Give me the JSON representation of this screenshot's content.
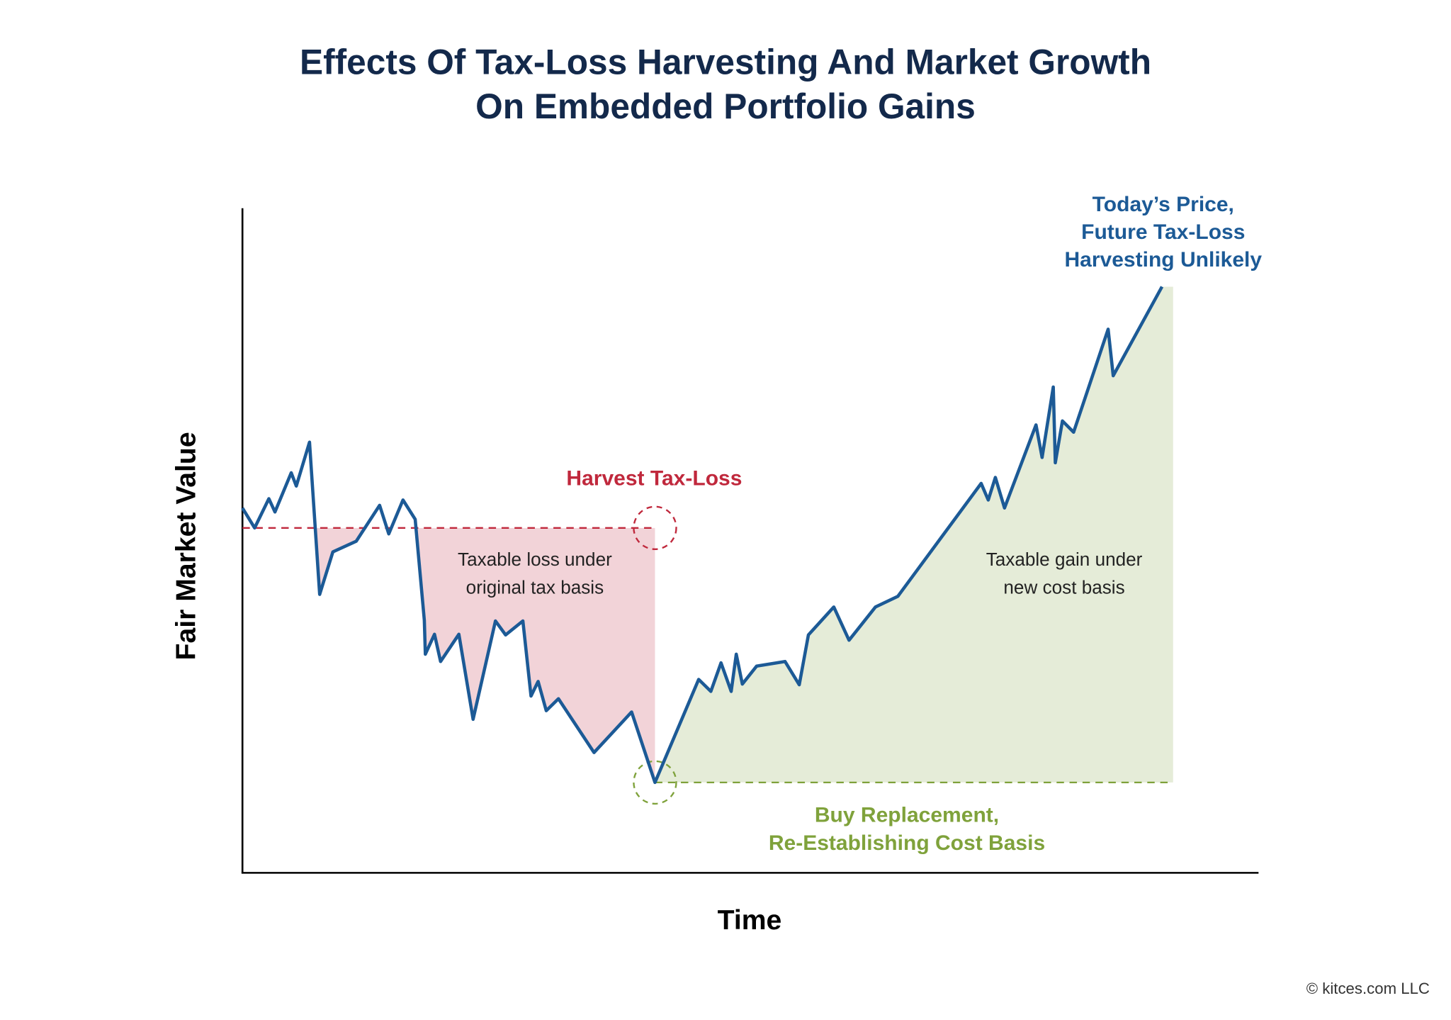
{
  "chart_data": {
    "type": "line",
    "title": [
      "Effects Of Tax-Loss Harvesting And Market Growth",
      "On Embedded Portfolio Gains"
    ],
    "x_label": "Time",
    "y_label": "Fair Market Value",
    "xlim": [
      0,
      100
    ],
    "ylim": [
      0,
      100
    ],
    "original_basis": 51.9,
    "series": [
      {
        "name": "Price",
        "color": "#1c5a96",
        "x": [
          0,
          1.2,
          2.6,
          3.2,
          4.8,
          5.3,
          6.6,
          7.6,
          8.9,
          11.2,
          13.5,
          14.4,
          15.8,
          17.0,
          17.9,
          18.0,
          18.9,
          19.5,
          21.3,
          22.7,
          24.9,
          25.9,
          27.6,
          28.4,
          29.1,
          29.9,
          31.1,
          34.6,
          38.3,
          40.6,
          44.9,
          46.1,
          47.1,
          48.1,
          48.6,
          49.2,
          50.6,
          53.4,
          54.8,
          55.7,
          58.2,
          59.7,
          62.3,
          64.5,
          72.7,
          73.4,
          74.1,
          75.0,
          78.1,
          78.7,
          79.8,
          80.0,
          80.7,
          81.8,
          85.2,
          85.7,
          90.5
        ],
        "values": [
          54.9,
          51.9,
          56.3,
          54.3,
          60.2,
          58.2,
          64.8,
          41.9,
          48.3,
          49.9,
          55.3,
          51.0,
          56.1,
          53.2,
          38.0,
          32.9,
          35.9,
          31.8,
          35.9,
          23.1,
          37.9,
          35.8,
          37.9,
          26.6,
          28.8,
          24.4,
          26.2,
          18.1,
          24.2,
          13.6,
          29.1,
          27.3,
          31.6,
          27.3,
          32.9,
          28.4,
          31.1,
          31.8,
          28.3,
          35.8,
          40.0,
          35.0,
          40.0,
          41.6,
          58.6,
          56.1,
          59.5,
          54.9,
          67.4,
          62.5,
          73.1,
          61.7,
          68.0,
          66.3,
          81.8,
          74.8,
          88.2
        ]
      }
    ],
    "loss_color": "#c0283c",
    "gain_color": "#7fa23b",
    "annotations": {
      "harvest": [
        "Harvest Tax-Loss"
      ],
      "loss_area": [
        "Taxable loss under",
        "original tax basis"
      ],
      "gain_area": [
        "Taxable gain under",
        "new cost basis"
      ],
      "replacement": [
        "Buy Replacement,",
        "Re-Establishing Cost Basis"
      ],
      "today": [
        "Today’s Price,",
        "Future Tax-Loss",
        "Harvesting Unlikely"
      ]
    },
    "footer": "© kitces.com LLC"
  }
}
